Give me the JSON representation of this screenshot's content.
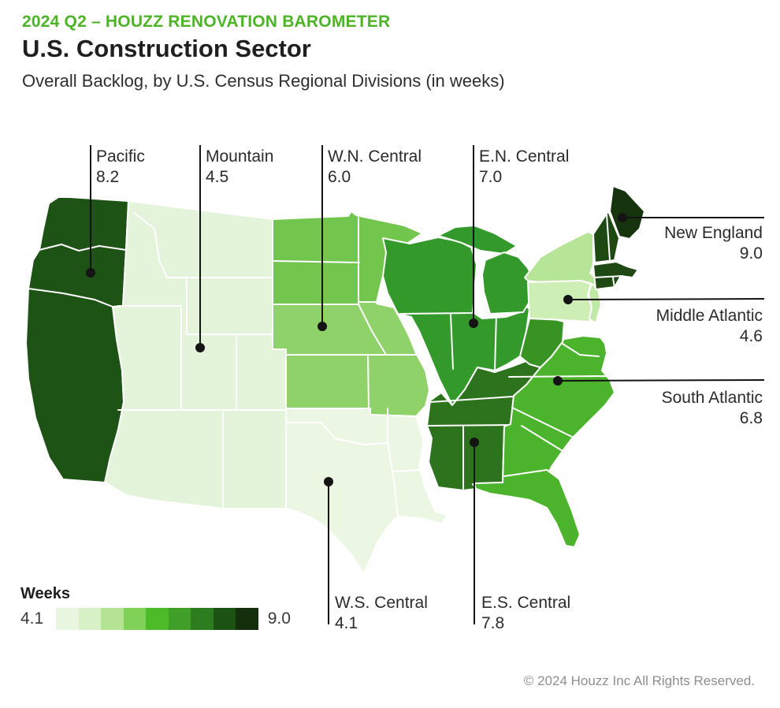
{
  "header": {
    "eyebrow": "2024 Q2 – HOUZZ RENOVATION BAROMETER",
    "title": "U.S. Construction Sector",
    "subtitle": "Overall Backlog, by U.S. Census Regional Divisions (in weeks)"
  },
  "chart_data": {
    "type": "choropleth_map",
    "title": "U.S. Construction Sector",
    "subtitle": "Overall Backlog, by U.S. Census Regional Divisions (in weeks)",
    "unit": "weeks",
    "value_range": [
      4.1,
      9.0
    ],
    "divisions": [
      {
        "name": "Pacific",
        "value": 8.2,
        "value_label": "8.2"
      },
      {
        "name": "Mountain",
        "value": 4.5,
        "value_label": "4.5"
      },
      {
        "name": "W.N. Central",
        "value": 6.0,
        "value_label": "6.0"
      },
      {
        "name": "E.N. Central",
        "value": 7.0,
        "value_label": "7.0"
      },
      {
        "name": "New England",
        "value": 9.0,
        "value_label": "9.0"
      },
      {
        "name": "Middle Atlantic",
        "value": 4.6,
        "value_label": "4.6"
      },
      {
        "name": "South Atlantic",
        "value": 6.8,
        "value_label": "6.8"
      },
      {
        "name": "W.S. Central",
        "value": 4.1,
        "value_label": "4.1"
      },
      {
        "name": "E.S. Central",
        "value": 7.8,
        "value_label": "7.8"
      }
    ],
    "legend": {
      "label": "Weeks",
      "min_label": "4.1",
      "max_label": "9.0",
      "swatches": [
        "#e9f7e1",
        "#d9f1c6",
        "#b4e393",
        "#7fd257",
        "#4cbb27",
        "#3f9f29",
        "#2e7c20",
        "#1c5313",
        "#132f0c"
      ]
    }
  },
  "map_colors": {
    "pacific": "#1e5316",
    "mountain": "#e3f4da",
    "wnc_north": "#72c64e",
    "wnc_south": "#8fd269",
    "wsc": "#ebf7e3",
    "enc": "#33992a",
    "esc": "#2d721d",
    "satl": "#4cb32c",
    "wv": "#389322",
    "ny": "#b6e597",
    "pa": "#cdeeb5",
    "nj": "#bfe9a4",
    "me": "#16340d",
    "ne_rest": "#1e4913",
    "leader": "#141414"
  },
  "footer": {
    "copyright": "© 2024 Houzz Inc All Rights Reserved."
  }
}
